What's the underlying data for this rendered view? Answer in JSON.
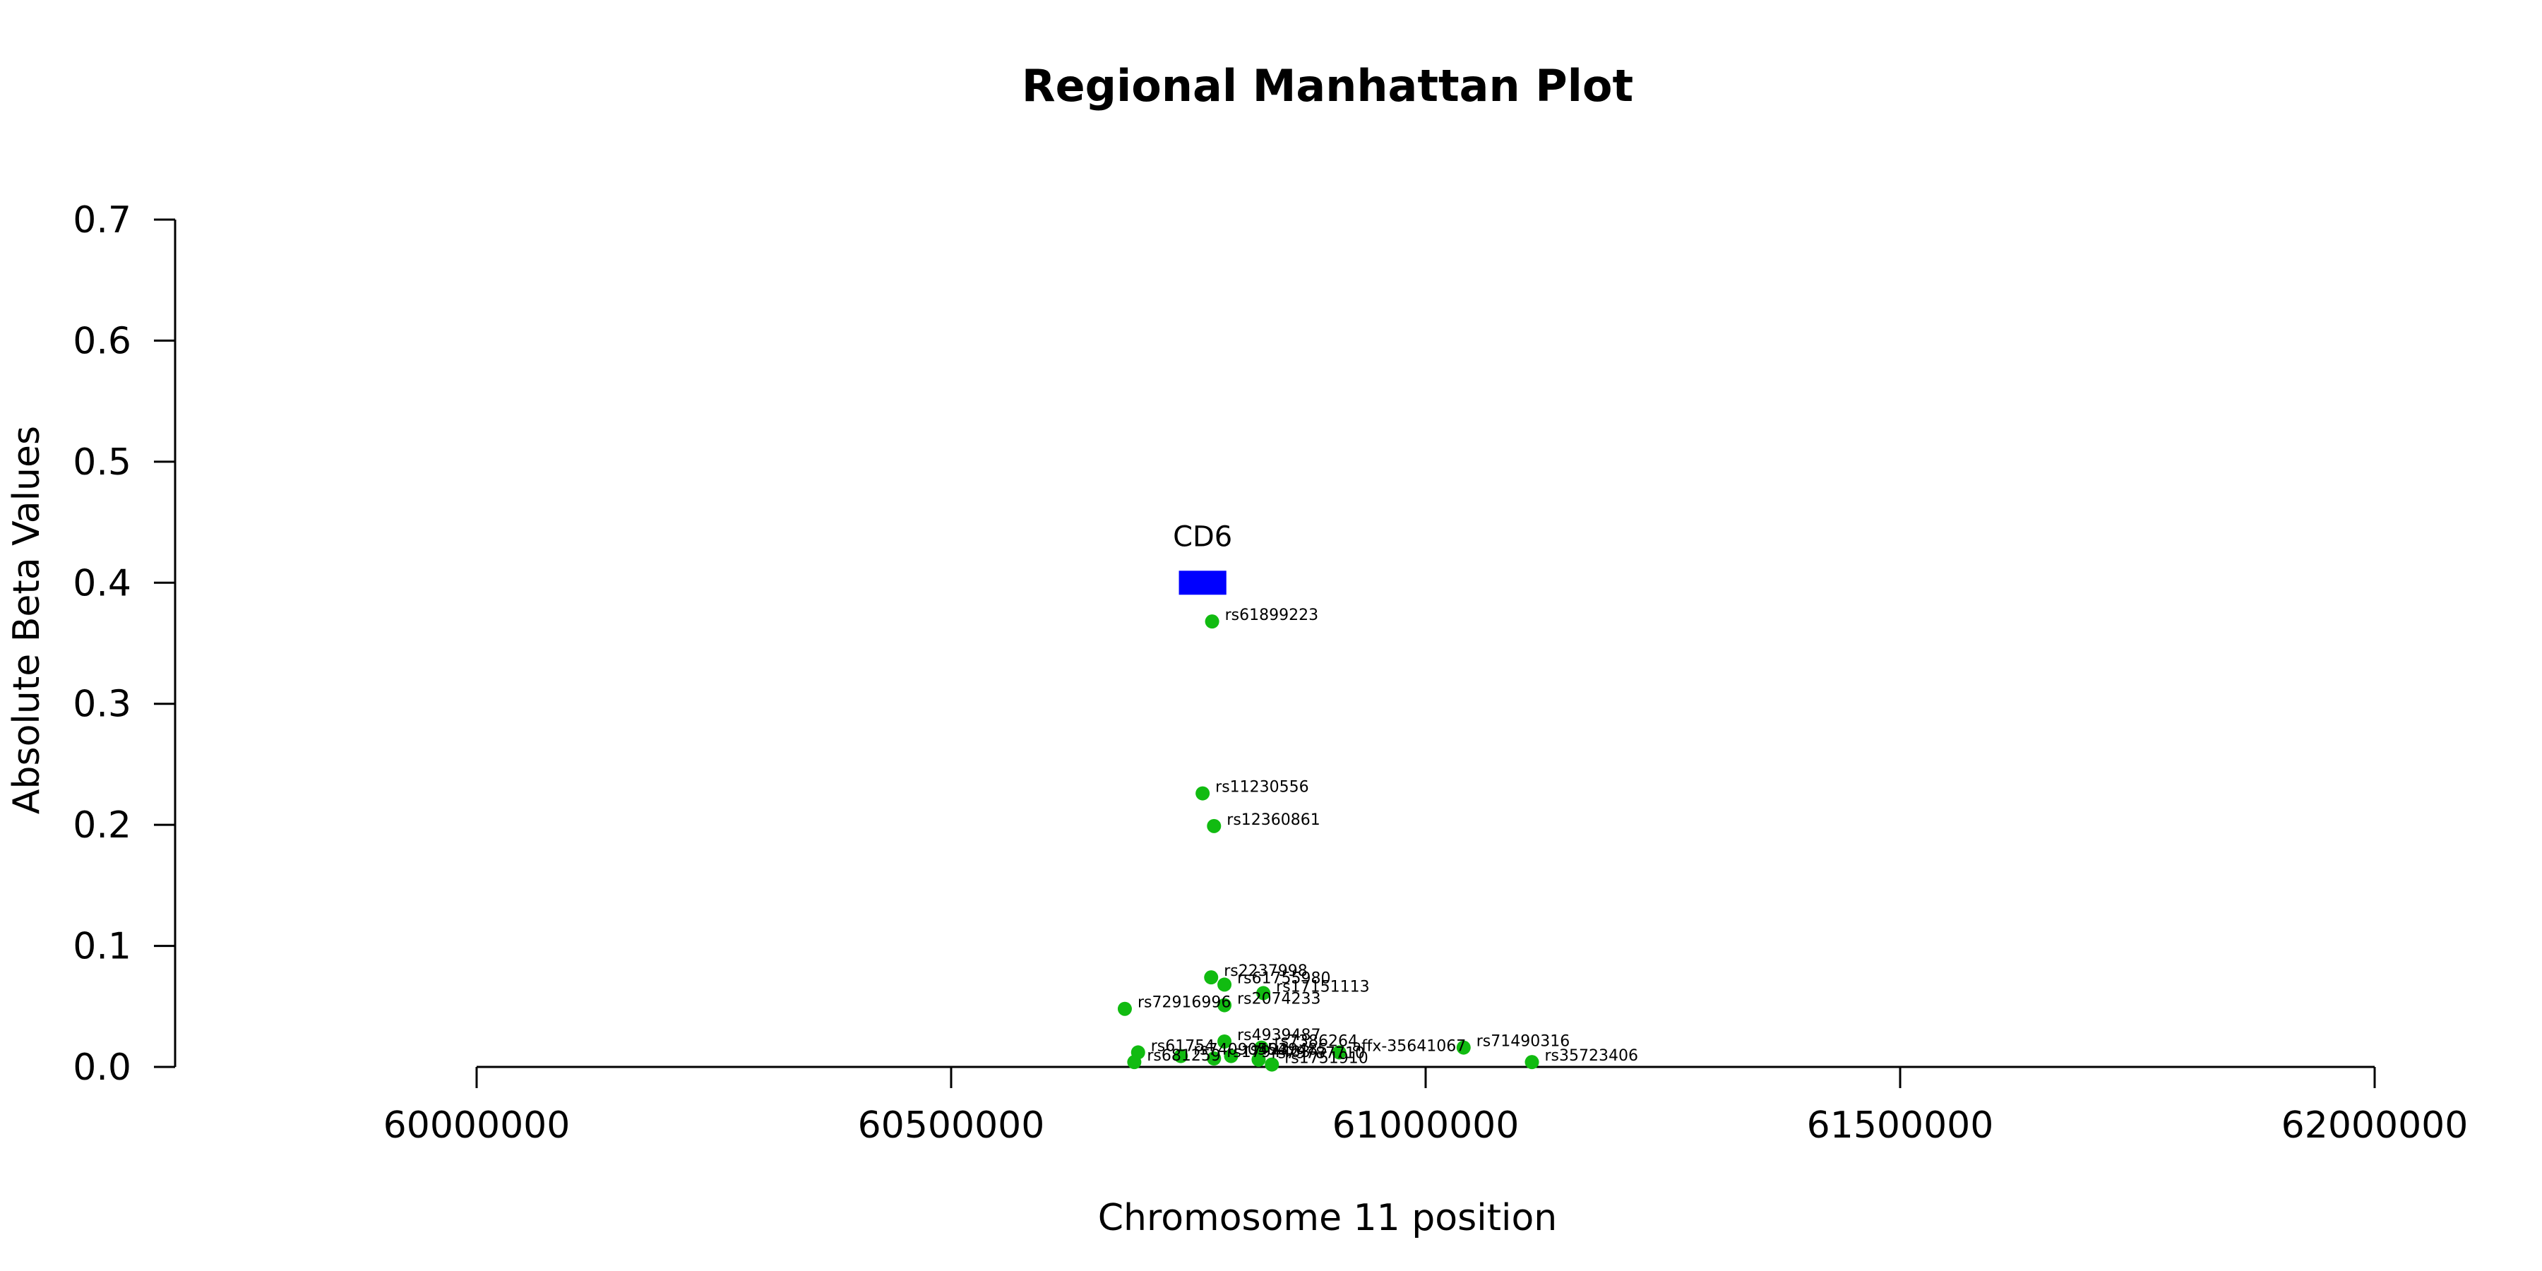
{
  "chart_data": {
    "type": "scatter",
    "title": "Regional Manhattan Plot",
    "xlabel": "Chromosome 11 position",
    "ylabel": "Absolute Beta Values",
    "xlim": [
      60000000,
      62000000
    ],
    "ylim": [
      0,
      0.7
    ],
    "xticks": [
      "60000000",
      "60500000",
      "61000000",
      "61500000",
      "62000000"
    ],
    "yticks": [
      "0.0",
      "0.1",
      "0.2",
      "0.3",
      "0.4",
      "0.5",
      "0.6",
      "0.7"
    ],
    "grid": false,
    "point_color": "#11bb11",
    "gene_color": "#0000ff",
    "gene": {
      "name": "CD6",
      "start": 60740000,
      "end": 60790000,
      "y": 0.4
    },
    "points": [
      {
        "label": "rs61899223",
        "x": 60775000,
        "y": 0.368
      },
      {
        "label": "rs11230556",
        "x": 60765000,
        "y": 0.226
      },
      {
        "label": "rs12360861",
        "x": 60777000,
        "y": 0.199
      },
      {
        "label": "rs2237998",
        "x": 60774000,
        "y": 0.074
      },
      {
        "label": "rs61755980",
        "x": 60788000,
        "y": 0.068
      },
      {
        "label": "rs17151113",
        "x": 60829000,
        "y": 0.061
      },
      {
        "label": "rs72916996",
        "x": 60683000,
        "y": 0.048
      },
      {
        "label": "rs2074233",
        "x": 60788000,
        "y": 0.051
      },
      {
        "label": "rs4939487",
        "x": 60788000,
        "y": 0.021
      },
      {
        "label": "rs7386264",
        "x": 60827000,
        "y": 0.016
      },
      {
        "label": "affx-35641067",
        "x": 60909000,
        "y": 0.012
      },
      {
        "label": "rs71490316",
        "x": 61040000,
        "y": 0.016
      },
      {
        "label": "rs35723406",
        "x": 61112000,
        "y": 0.004
      },
      {
        "label": "rs61754",
        "x": 60697000,
        "y": 0.012
      },
      {
        "label": "rs681259",
        "x": 60693000,
        "y": 0.004
      },
      {
        "label": "rs74090554",
        "x": 60742000,
        "y": 0.009
      },
      {
        "label": "rs1794403",
        "x": 60777000,
        "y": 0.007
      },
      {
        "label": "rs4939485",
        "x": 60795000,
        "y": 0.009
      },
      {
        "label": "rs79787710",
        "x": 60824000,
        "y": 0.006
      },
      {
        "label": "rs1751910",
        "x": 60838000,
        "y": 0.002
      }
    ]
  }
}
